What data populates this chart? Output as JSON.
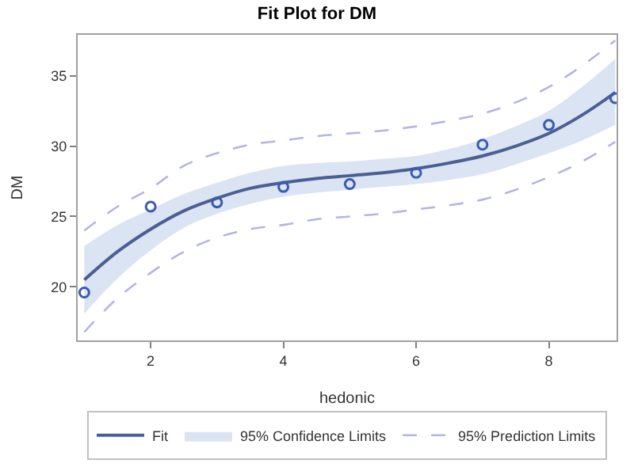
{
  "chart_data": {
    "type": "line",
    "title": "Fit Plot for DM",
    "xlabel": "hedonic",
    "ylabel": "DM",
    "x": [
      1,
      1.5,
      2,
      2.5,
      3,
      3.5,
      4,
      4.5,
      5,
      5.5,
      6,
      6.5,
      7,
      7.5,
      8,
      8.5,
      9
    ],
    "xlim": [
      0.9,
      9.02
    ],
    "xticks": [
      2,
      4,
      6,
      8
    ],
    "ylim": [
      16.2,
      37.9
    ],
    "yticks": [
      20,
      25,
      30,
      35
    ],
    "legend": "bottom",
    "annotations": [
      "95% Confidence Limits"
    ],
    "series": [
      {
        "name": "Fit",
        "color": "#4a5f92",
        "line_style": "solid",
        "values": [
          20.5,
          22.5,
          24.1,
          25.4,
          26.3,
          27.0,
          27.4,
          27.7,
          27.9,
          28.1,
          28.4,
          28.8,
          29.3,
          30.0,
          30.9,
          32.2,
          33.8
        ],
        "lower": [
          18.1,
          20.6,
          22.6,
          24.2,
          25.2,
          25.9,
          26.4,
          26.7,
          26.9,
          27.1,
          27.3,
          27.6,
          28.0,
          28.7,
          29.5,
          30.4,
          31.5
        ],
        "upper": [
          22.9,
          24.4,
          25.5,
          26.6,
          27.4,
          28.1,
          28.6,
          28.8,
          28.9,
          29.1,
          29.3,
          29.8,
          30.5,
          31.4,
          32.5,
          34.2,
          36.2
        ]
      },
      {
        "name": "95% Prediction Limits",
        "type": "line",
        "color": "#b4b4e6",
        "line_style": "dashed",
        "values": [
          24.0,
          25.7,
          27.0,
          28.6,
          29.5,
          30.1,
          30.4,
          30.7,
          30.9,
          31.1,
          31.4,
          31.8,
          32.3,
          33.1,
          34.2,
          35.7,
          37.5
        ]
      },
      {
        "type": "line",
        "color": "#b4b4e6",
        "line_style": "dashed",
        "values": [
          16.8,
          19.2,
          21.0,
          22.5,
          23.5,
          24.1,
          24.4,
          24.8,
          25.0,
          25.2,
          25.5,
          25.8,
          26.2,
          26.9,
          27.8,
          28.9,
          30.3
        ]
      },
      {
        "type": "scatter",
        "color": "#3a5bb0",
        "marker": "circle",
        "x": [
          1,
          2,
          3,
          4,
          5,
          6,
          7,
          8,
          9
        ],
        "values": [
          19.6,
          25.7,
          26.0,
          27.1,
          27.3,
          28.1,
          30.1,
          31.5,
          33.4
        ]
      }
    ]
  }
}
